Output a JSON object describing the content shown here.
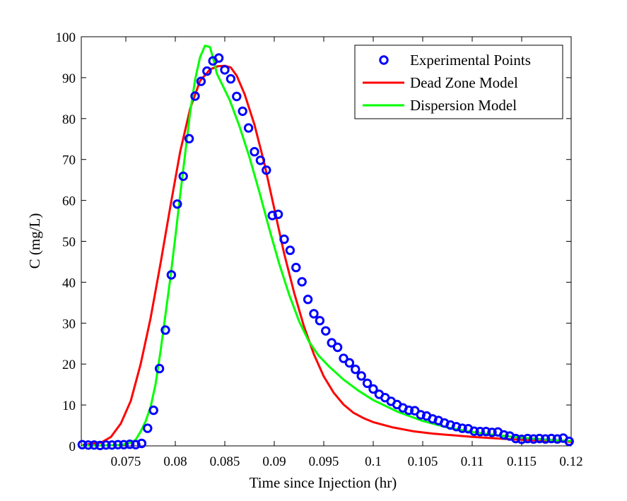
{
  "chart_data": {
    "type": "line",
    "title": "",
    "xlabel": "Time since Injection (hr)",
    "ylabel": "C (mg/L)",
    "xlim": [
      0.0705,
      0.12
    ],
    "ylim": [
      0,
      100
    ],
    "x_ticks": [
      0.075,
      0.08,
      0.085,
      0.09,
      0.095,
      0.1,
      0.105,
      0.11,
      0.115,
      0.12
    ],
    "x_tick_labels": [
      "0.075",
      "0.08",
      "0.085",
      "0.09",
      "0.095",
      "0.1",
      "0.105",
      "0.11",
      "0.115",
      "0.12"
    ],
    "y_ticks": [
      0,
      10,
      20,
      30,
      40,
      50,
      60,
      70,
      80,
      90,
      100
    ],
    "y_tick_labels": [
      "0",
      "10",
      "20",
      "30",
      "40",
      "50",
      "60",
      "70",
      "80",
      "90",
      "100"
    ],
    "grid": false,
    "legend_position": "top-right",
    "series": [
      {
        "name": "Experimental Points",
        "style": "markers",
        "color": "#0000ff",
        "x": [
          0.0706,
          0.0712,
          0.0718,
          0.0724,
          0.073,
          0.0736,
          0.0742,
          0.0748,
          0.0754,
          0.076,
          0.0766,
          0.0772,
          0.0778,
          0.0784,
          0.079,
          0.0796,
          0.0802,
          0.0808,
          0.0814,
          0.082,
          0.0826,
          0.0832,
          0.0838,
          0.0844,
          0.085,
          0.0856,
          0.0862,
          0.0868,
          0.0874,
          0.088,
          0.0886,
          0.0892,
          0.0898,
          0.0904,
          0.091,
          0.0916,
          0.0922,
          0.0928,
          0.0934,
          0.094,
          0.0946,
          0.0952,
          0.0958,
          0.0964,
          0.097,
          0.0976,
          0.0982,
          0.0988,
          0.0994,
          0.1,
          0.1006,
          0.1012,
          0.1018,
          0.1024,
          0.103,
          0.1036,
          0.1042,
          0.1048,
          0.1054,
          0.106,
          0.1066,
          0.1072,
          0.1078,
          0.1084,
          0.109,
          0.1096,
          0.1102,
          0.1108,
          0.1114,
          0.112,
          0.1126,
          0.1132,
          0.1138,
          0.1144,
          0.115,
          0.1156,
          0.1162,
          0.1168,
          0.1174,
          0.118,
          0.1186,
          0.1192,
          0.1198
        ],
        "y": [
          0.3,
          0.2,
          0.2,
          0.1,
          0.2,
          0.2,
          0.3,
          0.3,
          0.4,
          0.3,
          0.6,
          4.3,
          8.7,
          18.9,
          28.3,
          41.8,
          59.1,
          65.9,
          75.1,
          85.5,
          89.1,
          91.6,
          94.1,
          94.8,
          91.9,
          89.7,
          85.4,
          81.8,
          77.7,
          71.9,
          69.8,
          67.4,
          56.3,
          56.6,
          50.5,
          47.8,
          43.6,
          40.1,
          35.8,
          32.3,
          30.6,
          28.1,
          25.2,
          24.1,
          21.4,
          20.3,
          18.7,
          17.1,
          15.3,
          13.9,
          12.6,
          11.8,
          10.9,
          10.1,
          9.3,
          8.7,
          8.6,
          7.6,
          7.3,
          6.6,
          6.2,
          5.6,
          5.1,
          4.7,
          4.3,
          4.2,
          3.6,
          3.5,
          3.5,
          3.3,
          3.4,
          2.7,
          2.4,
          1.8,
          1.6,
          1.8,
          1.7,
          1.8,
          1.7,
          1.8,
          1.7,
          1.9,
          1.1
        ]
      },
      {
        "name": "Dead Zone Model",
        "style": "line",
        "color": "#ff0000",
        "x": [
          0.0706,
          0.0725,
          0.0735,
          0.0745,
          0.0755,
          0.0765,
          0.0775,
          0.0785,
          0.0795,
          0.0805,
          0.0815,
          0.0825,
          0.0835,
          0.0843,
          0.085,
          0.0856,
          0.0862,
          0.087,
          0.088,
          0.089,
          0.09,
          0.091,
          0.092,
          0.093,
          0.094,
          0.095,
          0.096,
          0.097,
          0.098,
          0.099,
          0.1,
          0.102,
          0.104,
          0.106,
          0.108,
          0.11,
          0.112,
          0.114,
          0.116,
          0.118,
          0.12
        ],
        "y": [
          0.2,
          0.8,
          2.2,
          5.5,
          11,
          20,
          31.2,
          44.5,
          58.5,
          72,
          82.4,
          89.2,
          92,
          92.8,
          92.9,
          92.5,
          90.5,
          86,
          78.5,
          69,
          58,
          47,
          37.5,
          29.2,
          22.4,
          17,
          13,
          10.1,
          8.1,
          6.8,
          5.8,
          4.5,
          3.6,
          3.0,
          2.6,
          2.2,
          1.9,
          1.6,
          1.4,
          1.2,
          1.0
        ]
      },
      {
        "name": "Dispersion Model",
        "style": "line",
        "color": "#00ff00",
        "x": [
          0.0706,
          0.0725,
          0.0745,
          0.0755,
          0.076,
          0.0765,
          0.077,
          0.0775,
          0.078,
          0.0785,
          0.079,
          0.0795,
          0.08,
          0.0805,
          0.081,
          0.0815,
          0.082,
          0.0825,
          0.083,
          0.0835,
          0.0838,
          0.0842,
          0.0847,
          0.0855,
          0.0865,
          0.0875,
          0.0885,
          0.0895,
          0.0905,
          0.0915,
          0.0925,
          0.0935,
          0.0945,
          0.0955,
          0.097,
          0.0985,
          0.1,
          0.1025,
          0.105,
          0.1075,
          0.11,
          0.1125,
          0.115,
          0.1175,
          0.12
        ],
        "y": [
          0.1,
          0.1,
          0.2,
          0.8,
          1.5,
          3.5,
          6,
          9.5,
          15,
          23,
          32,
          41,
          51,
          61.5,
          71.5,
          81.5,
          89.5,
          95,
          97.8,
          97.5,
          95,
          91,
          88.5,
          84.5,
          78,
          70.5,
          62,
          53,
          44.5,
          37,
          30.5,
          25.5,
          22,
          19.5,
          16.2,
          13.5,
          11.2,
          8.3,
          6.1,
          4.5,
          3.4,
          2.6,
          2.0,
          1.5,
          1.2
        ]
      }
    ]
  }
}
